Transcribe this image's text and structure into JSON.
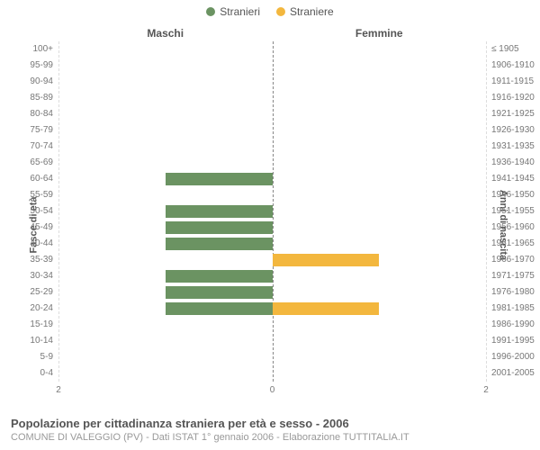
{
  "chart": {
    "type": "population_pyramid",
    "legend": [
      {
        "label": "Stranieri",
        "color": "#6b9362"
      },
      {
        "label": "Straniere",
        "color": "#f3b73e"
      }
    ],
    "col_headers": {
      "left": "Maschi",
      "right": "Femmine"
    },
    "left_axis_title": "Fasce di età",
    "right_axis_title": "Anni di nascita",
    "left_ticks": [
      "100+",
      "95-99",
      "90-94",
      "85-89",
      "80-84",
      "75-79",
      "70-74",
      "65-69",
      "60-64",
      "55-59",
      "50-54",
      "45-49",
      "40-44",
      "35-39",
      "30-34",
      "25-29",
      "20-24",
      "15-19",
      "10-14",
      "5-9",
      "0-4"
    ],
    "right_ticks": [
      "≤ 1905",
      "1906-1910",
      "1911-1915",
      "1916-1920",
      "1921-1925",
      "1926-1930",
      "1931-1935",
      "1936-1940",
      "1941-1945",
      "1946-1950",
      "1951-1955",
      "1956-1960",
      "1961-1965",
      "1966-1970",
      "1971-1975",
      "1976-1980",
      "1981-1985",
      "1986-1990",
      "1991-1995",
      "1996-2000",
      "2001-2005"
    ],
    "x_ticks": [
      2,
      0,
      2
    ],
    "xlim": 2,
    "male_values": [
      0,
      0,
      0,
      0,
      0,
      0,
      0,
      0,
      1,
      0,
      1,
      1,
      1,
      0,
      1,
      1,
      1,
      0,
      0,
      0,
      0
    ],
    "female_values": [
      0,
      0,
      0,
      0,
      0,
      0,
      0,
      0,
      0,
      0,
      0,
      0,
      0,
      1,
      0,
      0,
      1,
      0,
      0,
      0,
      0
    ],
    "male_color": "#6b9362",
    "female_color": "#f3b73e",
    "background_color": "#ffffff",
    "grid_color": "#dddddd",
    "center_line_color": "#888888",
    "tick_font_size": 10,
    "header_font_size": 12,
    "bar_fill_ratio": 0.8
  },
  "footer": {
    "title": "Popolazione per cittadinanza straniera per età e sesso - 2006",
    "subtitle": "COMUNE DI VALEGGIO (PV) - Dati ISTAT 1° gennaio 2006 - Elaborazione TUTTITALIA.IT"
  }
}
